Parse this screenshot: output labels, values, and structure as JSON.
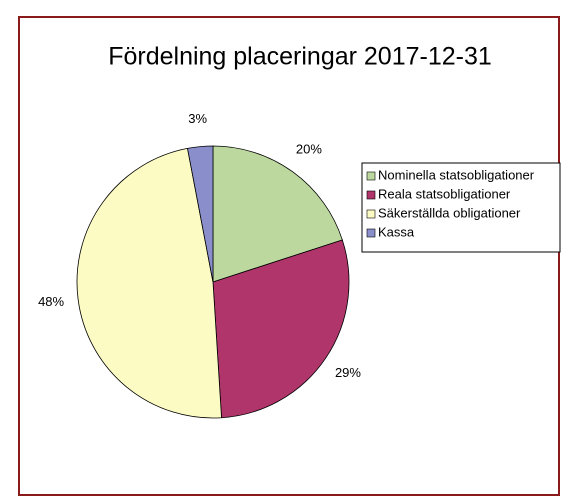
{
  "chart_data": {
    "type": "pie",
    "title": "Fördelning placeringar 2017-12-31",
    "categories": [
      "Nominella statsobligationer",
      "Reala statsobligationer",
      "Säkerställda obligationer",
      "Kassa"
    ],
    "values": [
      20,
      29,
      48,
      3
    ],
    "value_labels": [
      "20%",
      "29%",
      "48%",
      "3%"
    ],
    "colors": [
      "#bcd89f",
      "#b0356a",
      "#fdfbc4",
      "#8a8fcc"
    ],
    "legend": "right"
  }
}
